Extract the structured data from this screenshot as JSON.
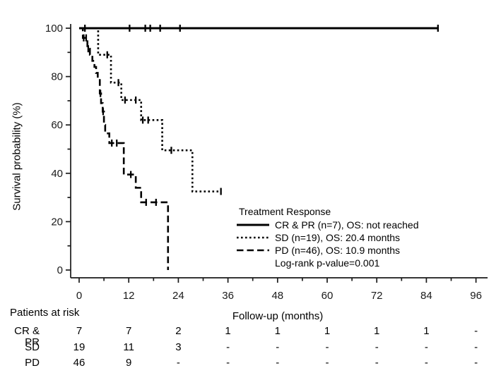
{
  "figure": {
    "background": "#ffffff",
    "ink": "#000000"
  },
  "chart_data": {
    "type": "line",
    "subtype": "kaplan-meier-step-curves",
    "title": "",
    "xlabel": "Follow-up (months)",
    "ylabel": "Survival probability (%)",
    "xlim": [
      0,
      96
    ],
    "ylim": [
      0,
      100
    ],
    "x_ticks": [
      0,
      12,
      24,
      36,
      48,
      60,
      72,
      84,
      96
    ],
    "x_minor_ticks": [
      6,
      18,
      30,
      42,
      54,
      66,
      78,
      90
    ],
    "y_ticks": [
      0,
      20,
      40,
      60,
      80,
      100
    ],
    "y_minor_ticks": [
      10,
      30,
      50,
      70,
      90
    ],
    "grid": false,
    "legend_position": "inside-lower-right",
    "series": [
      {
        "name": "CR & PR",
        "n": 7,
        "os": "not reached",
        "line_style": "solid",
        "steps": [
          [
            0,
            100
          ],
          [
            87,
            100
          ]
        ],
        "censors": [
          [
            1.4,
            100
          ],
          [
            12.2,
            100
          ],
          [
            16,
            100
          ],
          [
            17.2,
            100
          ],
          [
            19.6,
            100
          ],
          [
            24.4,
            100
          ],
          [
            86.8,
            100
          ]
        ]
      },
      {
        "name": "SD",
        "n": 19,
        "os": "20.4 months",
        "line_style": "dotted",
        "steps": [
          [
            0,
            100
          ],
          [
            4.6,
            100
          ],
          [
            4.6,
            89
          ],
          [
            7.7,
            89
          ],
          [
            7.7,
            77.5
          ],
          [
            10.2,
            77.5
          ],
          [
            10.2,
            70.3
          ],
          [
            15,
            70.3
          ],
          [
            15,
            62
          ],
          [
            20.1,
            62
          ],
          [
            20.1,
            49.5
          ],
          [
            27.4,
            49.5
          ],
          [
            27.4,
            32.5
          ],
          [
            34.4,
            32.5
          ]
        ],
        "censors": [
          [
            6.8,
            89
          ],
          [
            9.5,
            77.5
          ],
          [
            11.1,
            70.3
          ],
          [
            13.7,
            70.3
          ],
          [
            15.4,
            62
          ],
          [
            16.7,
            62
          ],
          [
            22.3,
            49.5
          ],
          [
            34.3,
            32.5
          ]
        ]
      },
      {
        "name": "PD",
        "n": 46,
        "os": "10.9 months",
        "line_style": "dashed",
        "steps": [
          [
            0,
            100
          ],
          [
            0.9,
            100
          ],
          [
            0.9,
            96
          ],
          [
            2,
            96
          ],
          [
            2,
            91.5
          ],
          [
            2.6,
            91.5
          ],
          [
            2.6,
            89
          ],
          [
            3.2,
            89
          ],
          [
            3.2,
            86.5
          ],
          [
            3.7,
            86.5
          ],
          [
            3.7,
            84
          ],
          [
            4.1,
            84
          ],
          [
            4.1,
            81.5
          ],
          [
            4.5,
            81.5
          ],
          [
            4.5,
            79
          ],
          [
            5,
            79
          ],
          [
            5,
            73
          ],
          [
            5.3,
            73
          ],
          [
            5.3,
            69
          ],
          [
            5.7,
            69
          ],
          [
            5.7,
            65.5
          ],
          [
            6,
            65.5
          ],
          [
            6,
            60
          ],
          [
            6.3,
            60
          ],
          [
            6.3,
            56.5
          ],
          [
            7.3,
            56.5
          ],
          [
            7.3,
            52.5
          ],
          [
            10.8,
            52.5
          ],
          [
            10.8,
            39.5
          ],
          [
            13.7,
            39.5
          ],
          [
            13.7,
            34
          ],
          [
            15,
            34
          ],
          [
            15,
            28
          ],
          [
            21.5,
            28
          ],
          [
            21.5,
            0
          ]
        ],
        "censors": [
          [
            1.1,
            96
          ],
          [
            1.7,
            96
          ],
          [
            2.2,
            91.5
          ],
          [
            5.15,
            73
          ],
          [
            5.8,
            65.5
          ],
          [
            7.9,
            52.5
          ],
          [
            9.1,
            52.5
          ],
          [
            12.5,
            39.5
          ],
          [
            16.2,
            28
          ],
          [
            18.6,
            28
          ]
        ]
      }
    ]
  },
  "legend": {
    "title": "Treatment Response",
    "entries": [
      {
        "style": "solid",
        "label": "CR & PR (n=7), OS: not reached"
      },
      {
        "style": "dotted",
        "label": "SD (n=19), OS: 20.4 months"
      },
      {
        "style": "dashed",
        "label": "PD (n=46), OS: 10.9 months"
      }
    ],
    "footnote": "Log-rank p-value=0.001"
  },
  "risk_table": {
    "title": "Patients at risk",
    "time_points": [
      0,
      12,
      24,
      36,
      48,
      60,
      72,
      84,
      96
    ],
    "rows": [
      {
        "label": "CR & PR",
        "counts": [
          "7",
          "7",
          "2",
          "1",
          "1",
          "1",
          "1",
          "1",
          "-"
        ]
      },
      {
        "label": "SD",
        "counts": [
          "19",
          "11",
          "3",
          "-",
          "-",
          "-",
          "-",
          "-",
          "-"
        ]
      },
      {
        "label": "PD",
        "counts": [
          "46",
          "9",
          "-",
          "-",
          "-",
          "-",
          "-",
          "-",
          "-"
        ]
      }
    ]
  }
}
